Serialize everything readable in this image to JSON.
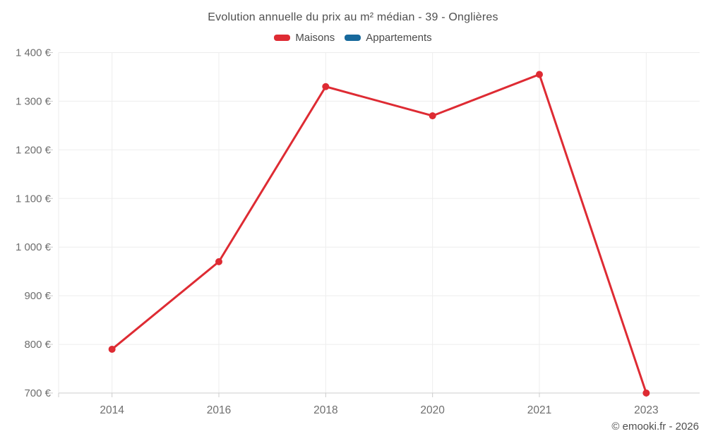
{
  "title": "Evolution annuelle du prix au m² médian - 39 - Onglières",
  "legend": [
    {
      "label": "Maisons",
      "color": "#de2b33"
    },
    {
      "label": "Appartements",
      "color": "#17699c"
    }
  ],
  "footer_credit": "© emooki.fr - 2026",
  "chart_data": {
    "type": "line",
    "title": "Evolution annuelle du prix au m² médian - 39 - Onglières",
    "categories": [
      "2014",
      "2016",
      "2018",
      "2020",
      "2021",
      "2023"
    ],
    "series": [
      {
        "name": "Maisons",
        "color": "#de2b33",
        "values": [
          790,
          970,
          1330,
          1270,
          1355,
          700
        ]
      },
      {
        "name": "Appartements",
        "color": "#17699c",
        "values": []
      }
    ],
    "xlabel": "",
    "ylabel": "",
    "ylim": [
      700,
      1400
    ],
    "ytick_step": 100,
    "ytick_labels": [
      "700 €",
      "800 €",
      "900 €",
      "1 000 €",
      "1 100 €",
      "1 200 €",
      "1 300 €",
      "1 400 €"
    ],
    "grid": true,
    "legend_position": "top",
    "styles": {
      "grid_color": "#ededed",
      "axis_color": "#cccccc",
      "tick_text_color": "#6e6e6e",
      "title_color": "#4f4f4f",
      "legend_text_color": "#4a4a4a",
      "line_width": 3,
      "point_radius": 5
    }
  }
}
